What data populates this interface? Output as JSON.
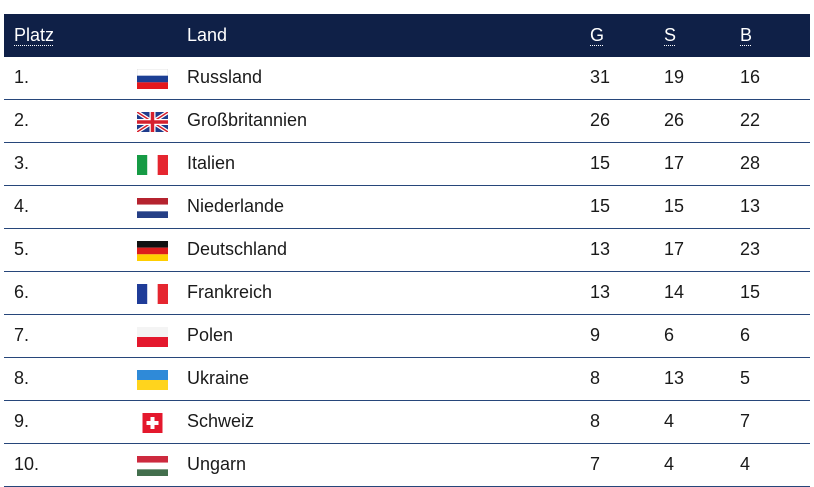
{
  "header": {
    "rank": "Platz",
    "country": "Land",
    "gold": "G",
    "silver": "S",
    "bronze": "B"
  },
  "rows": [
    {
      "rank": "1.",
      "country": "Russland",
      "gold": "31",
      "silver": "19",
      "bronze": "16",
      "flag_icon": "flag-russia-icon"
    },
    {
      "rank": "2.",
      "country": "Großbritannien",
      "gold": "26",
      "silver": "26",
      "bronze": "22",
      "flag_icon": "flag-uk-icon"
    },
    {
      "rank": "3.",
      "country": "Italien",
      "gold": "15",
      "silver": "17",
      "bronze": "28",
      "flag_icon": "flag-italy-icon"
    },
    {
      "rank": "4.",
      "country": "Niederlande",
      "gold": "15",
      "silver": "15",
      "bronze": "13",
      "flag_icon": "flag-netherlands-icon"
    },
    {
      "rank": "5.",
      "country": "Deutschland",
      "gold": "13",
      "silver": "17",
      "bronze": "23",
      "flag_icon": "flag-germany-icon"
    },
    {
      "rank": "6.",
      "country": "Frankreich",
      "gold": "13",
      "silver": "14",
      "bronze": "15",
      "flag_icon": "flag-france-icon"
    },
    {
      "rank": "7.",
      "country": "Polen",
      "gold": "9",
      "silver": "6",
      "bronze": "6",
      "flag_icon": "flag-poland-icon"
    },
    {
      "rank": "8.",
      "country": "Ukraine",
      "gold": "8",
      "silver": "13",
      "bronze": "5",
      "flag_icon": "flag-ukraine-icon"
    },
    {
      "rank": "9.",
      "country": "Schweiz",
      "gold": "8",
      "silver": "4",
      "bronze": "7",
      "flag_icon": "flag-switzerland-icon"
    },
    {
      "rank": "10.",
      "country": "Ungarn",
      "gold": "7",
      "silver": "4",
      "bronze": "4",
      "flag_icon": "flag-hungary-icon"
    }
  ],
  "colors": {
    "header_bg": "#0f2047",
    "header_text": "#ffffff",
    "row_divider": "#27467a",
    "row_text": "#1a1a1a"
  }
}
